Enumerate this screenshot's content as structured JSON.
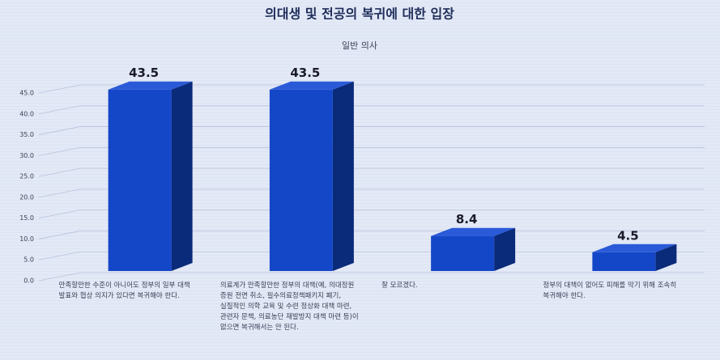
{
  "chart_data": {
    "type": "bar3d",
    "title": "의대생 및 전공의 복귀에 대한 입장",
    "subtitle": "일반 의사",
    "categories": [
      "만족할만한 수준이 아니어도 정부의 일부 대책 발표와 협상 의지가 있다면 복귀해야 한다.",
      "의료계가 만족할만한 정부의 대책(예, 의대정원 증원 전면 취소, 필수의료정책패키지 폐기, 실질적인 의학 교육 및 수련 정상화 대책 마련, 관련자 문책, 의료농단 재발방지 대책 마련 등)이 없으면 복귀해서는 안 된다.",
      "잘 모르겠다.",
      "정부의 대책이 없어도 피해를 막기 위해 조속히 복귀해야 한다."
    ],
    "values": [
      43.5,
      43.5,
      8.4,
      4.5
    ],
    "color": "#1447c8",
    "ylim": [
      0,
      45
    ],
    "yticks": [
      {
        "value": 0,
        "label": "0.0"
      },
      {
        "value": 5,
        "label": "5.0"
      },
      {
        "value": 10,
        "label": "10.0"
      },
      {
        "value": 15,
        "label": "15.0"
      },
      {
        "value": 20,
        "label": "20.0"
      },
      {
        "value": 25,
        "label": "25.0"
      },
      {
        "value": 30,
        "label": "30.0"
      },
      {
        "value": 35,
        "label": "35.0"
      },
      {
        "value": 40,
        "label": "40.0"
      },
      {
        "value": 45,
        "label": "45.0"
      }
    ],
    "grid": true
  }
}
